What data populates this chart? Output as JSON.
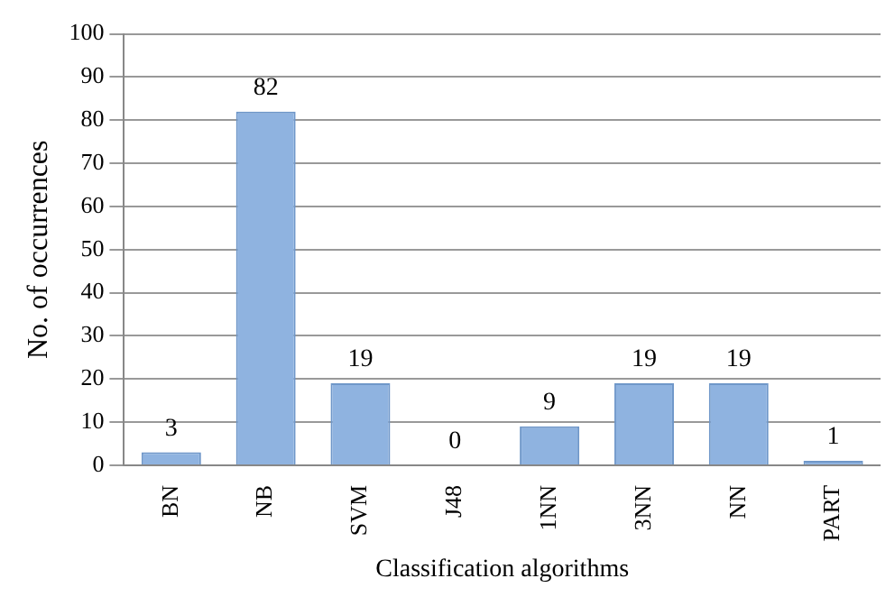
{
  "chart_data": {
    "type": "bar",
    "xlabel": "Classification algorithms",
    "ylabel": "No. of occurrences",
    "categories": [
      "BN",
      "NB",
      "SVM",
      "J48",
      "1NN",
      "3NN",
      "NN",
      "PART"
    ],
    "values": [
      3,
      82,
      19,
      0,
      9,
      19,
      19,
      1
    ],
    "color": "#8fb3e0",
    "ylim": [
      0,
      100
    ],
    "yticks": [
      0,
      10,
      20,
      30,
      40,
      50,
      60,
      70,
      80,
      90,
      100
    ],
    "grid": "y",
    "data_labels": true
  }
}
